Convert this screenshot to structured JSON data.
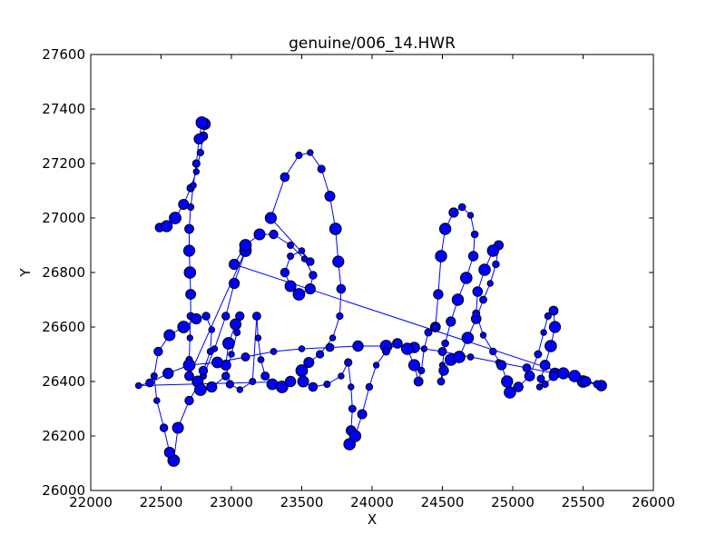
{
  "chart_data": {
    "type": "scatter",
    "title": "genuine/006_14.HWR",
    "xlabel": "X",
    "ylabel": "Y",
    "xlim": [
      22000,
      26000
    ],
    "ylim": [
      26000,
      27600
    ],
    "xticks": [
      "22000",
      "22500",
      "23000",
      "23500",
      "24000",
      "24500",
      "25000",
      "25500",
      "26000"
    ],
    "yticks": [
      "26000",
      "26200",
      "26400",
      "26600",
      "26800",
      "27000",
      "27200",
      "27400",
      "27600"
    ],
    "grid": false,
    "legend": "none",
    "marker": "circle",
    "colors": {
      "marker_fill": "#0000ff",
      "marker_edge": "#000000",
      "line": "#0000ff"
    },
    "series": [
      {
        "stroke": "1",
        "points": [
          [
            22490,
            26965
          ],
          [
            22540,
            26970
          ],
          [
            22600,
            27000
          ],
          [
            22660,
            27050
          ],
          [
            22710,
            27110
          ],
          [
            22750,
            27170
          ],
          [
            22780,
            27240
          ],
          [
            22800,
            27300
          ],
          [
            22810,
            27345
          ],
          [
            22790,
            27350
          ],
          [
            22770,
            27290
          ],
          [
            22750,
            27200
          ],
          [
            22730,
            27120
          ],
          [
            22710,
            27040
          ],
          [
            22700,
            26960
          ],
          [
            22700,
            26880
          ],
          [
            22705,
            26800
          ],
          [
            22710,
            26720
          ],
          [
            22710,
            26640
          ],
          [
            22705,
            26560
          ],
          [
            22700,
            26480
          ],
          [
            22700,
            26420
          ]
        ]
      },
      {
        "stroke": "l-e",
        "points": [
          [
            23100,
            26880
          ],
          [
            23020,
            26760
          ],
          [
            22960,
            26640
          ],
          [
            22880,
            26520
          ],
          [
            22800,
            26420
          ],
          [
            22700,
            26330
          ],
          [
            22620,
            26230
          ],
          [
            22590,
            26110
          ],
          [
            22560,
            26140
          ],
          [
            22520,
            26230
          ],
          [
            22470,
            26330
          ],
          [
            22450,
            26420
          ],
          [
            22480,
            26510
          ],
          [
            22560,
            26570
          ],
          [
            22660,
            26600
          ],
          [
            22750,
            26630
          ],
          [
            22820,
            26640
          ],
          [
            22860,
            26590
          ],
          [
            22850,
            26510
          ],
          [
            22800,
            26440
          ],
          [
            22760,
            26400
          ],
          [
            22780,
            26370
          ],
          [
            22860,
            26380
          ],
          [
            22960,
            26420
          ],
          [
            23000,
            26500
          ],
          [
            23040,
            26580
          ],
          [
            23060,
            26640
          ],
          [
            23030,
            26610
          ],
          [
            22980,
            26540
          ],
          [
            22960,
            26460
          ],
          [
            22990,
            26390
          ],
          [
            23060,
            26370
          ],
          [
            23150,
            26400
          ]
        ]
      },
      {
        "stroke": "i",
        "points": [
          [
            23180,
            26640
          ],
          [
            23190,
            26560
          ],
          [
            23210,
            26480
          ],
          [
            23240,
            26420
          ],
          [
            23290,
            26390
          ],
          [
            23360,
            26380
          ],
          [
            23420,
            26400
          ]
        ]
      },
      {
        "stroke": "t-cross",
        "points": [
          [
            22340,
            26385
          ],
          [
            22420,
            26395
          ],
          [
            22550,
            26430
          ],
          [
            22700,
            26460
          ],
          [
            22900,
            26470
          ],
          [
            23100,
            26490
          ],
          [
            23300,
            26510
          ],
          [
            23500,
            26520
          ],
          [
            23700,
            26525
          ],
          [
            23900,
            26530
          ],
          [
            24100,
            26530
          ],
          [
            24300,
            26525
          ],
          [
            24500,
            26510
          ],
          [
            24700,
            26490
          ],
          [
            24900,
            26470
          ],
          [
            25100,
            26450
          ],
          [
            25300,
            26430
          ],
          [
            25500,
            26400
          ],
          [
            25630,
            26385
          ]
        ]
      },
      {
        "stroke": "loop",
        "points": [
          [
            23020,
            26830
          ],
          [
            23100,
            26900
          ],
          [
            23200,
            26940
          ],
          [
            23300,
            26940
          ],
          [
            23420,
            26900
          ],
          [
            23520,
            26850
          ],
          [
            23580,
            26790
          ],
          [
            23560,
            26740
          ],
          [
            23480,
            26720
          ],
          [
            23420,
            26750
          ],
          [
            23380,
            26800
          ],
          [
            23420,
            26860
          ],
          [
            23500,
            26880
          ],
          [
            23560,
            26840
          ]
        ]
      },
      {
        "stroke": "e",
        "points": [
          [
            23280,
            27000
          ],
          [
            23380,
            27150
          ],
          [
            23480,
            27230
          ],
          [
            23560,
            27240
          ],
          [
            23640,
            27180
          ],
          [
            23700,
            27080
          ],
          [
            23740,
            26960
          ],
          [
            23760,
            26840
          ],
          [
            23780,
            26740
          ],
          [
            23770,
            26640
          ],
          [
            23720,
            26560
          ],
          [
            23630,
            26500
          ],
          [
            23550,
            26470
          ],
          [
            23500,
            26440
          ],
          [
            23510,
            26400
          ],
          [
            23580,
            26380
          ],
          [
            23680,
            26390
          ],
          [
            23780,
            26420
          ],
          [
            23830,
            26470
          ]
        ]
      },
      {
        "stroke": "n",
        "points": [
          [
            23830,
            26470
          ],
          [
            23850,
            26380
          ],
          [
            23860,
            26300
          ],
          [
            23850,
            26220
          ],
          [
            23840,
            26170
          ],
          [
            23880,
            26200
          ],
          [
            23930,
            26280
          ],
          [
            23980,
            26380
          ],
          [
            24030,
            26460
          ],
          [
            24100,
            26510
          ],
          [
            24180,
            26540
          ],
          [
            24250,
            26520
          ],
          [
            24300,
            26460
          ],
          [
            24330,
            26400
          ],
          [
            24350,
            26440
          ],
          [
            24370,
            26520
          ],
          [
            24400,
            26580
          ],
          [
            24450,
            26600
          ]
        ]
      },
      {
        "stroke": "t",
        "points": [
          [
            24450,
            26600
          ],
          [
            24470,
            26720
          ],
          [
            24490,
            26860
          ],
          [
            24520,
            26960
          ],
          [
            24580,
            27020
          ],
          [
            24640,
            27040
          ],
          [
            24700,
            27010
          ],
          [
            24730,
            26940
          ],
          [
            24720,
            26860
          ],
          [
            24670,
            26780
          ],
          [
            24610,
            26700
          ],
          [
            24560,
            26620
          ],
          [
            24520,
            26540
          ],
          [
            24500,
            26460
          ],
          [
            24490,
            26400
          ],
          [
            24510,
            26440
          ],
          [
            24560,
            26480
          ],
          [
            24620,
            26490
          ]
        ]
      },
      {
        "stroke": "c",
        "points": [
          [
            24620,
            26490
          ],
          [
            24680,
            26560
          ],
          [
            24740,
            26630
          ],
          [
            24790,
            26700
          ],
          [
            24840,
            26760
          ],
          [
            24880,
            26830
          ],
          [
            24900,
            26900
          ],
          [
            24860,
            26880
          ],
          [
            24800,
            26810
          ],
          [
            24750,
            26730
          ],
          [
            24740,
            26650
          ],
          [
            24790,
            26570
          ],
          [
            24860,
            26510
          ],
          [
            24920,
            26460
          ],
          [
            24960,
            26400
          ],
          [
            24980,
            26360
          ],
          [
            25040,
            26380
          ],
          [
            25120,
            26420
          ]
        ]
      },
      {
        "stroke": "s",
        "points": [
          [
            25120,
            26420
          ],
          [
            25180,
            26500
          ],
          [
            25220,
            26580
          ],
          [
            25250,
            26640
          ],
          [
            25290,
            26660
          ],
          [
            25300,
            26600
          ],
          [
            25270,
            26530
          ],
          [
            25230,
            26460
          ],
          [
            25200,
            26410
          ],
          [
            25190,
            26380
          ],
          [
            25230,
            26390
          ],
          [
            25290,
            26420
          ],
          [
            25360,
            26430
          ],
          [
            25440,
            26420
          ],
          [
            25520,
            26400
          ],
          [
            25600,
            26390
          ]
        ]
      }
    ]
  }
}
